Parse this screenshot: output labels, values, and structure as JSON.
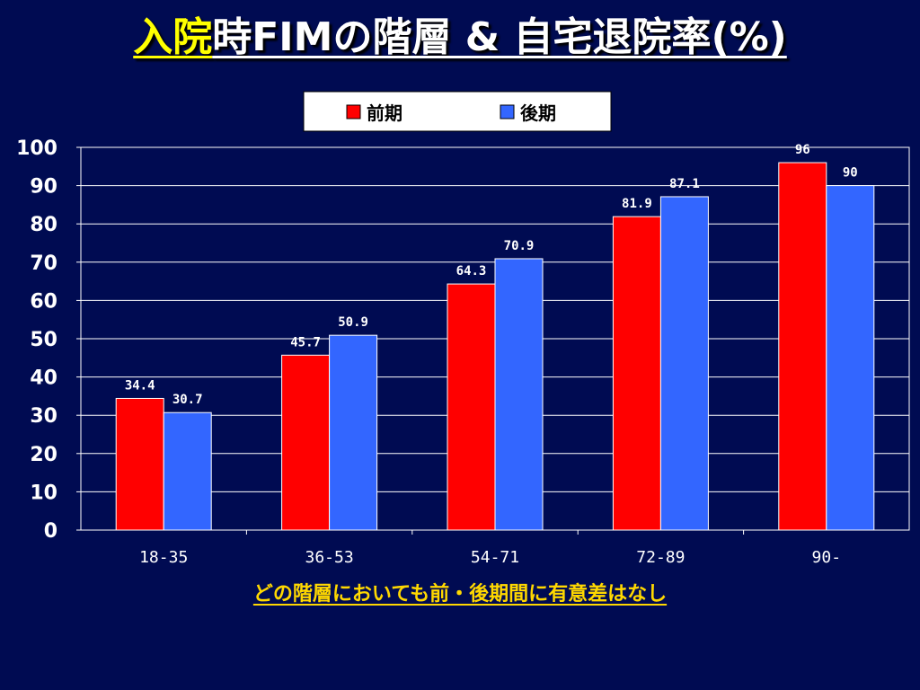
{
  "title": {
    "highlight": "入院",
    "main": "時FIMの階層 & 自宅退院率(%)"
  },
  "note": "どの階層においても前・後期間に有意差はなし",
  "chart_data": {
    "type": "bar",
    "title": "入院時FIMの階層 & 自宅退院率(%)",
    "categories": [
      "18-35",
      "36-53",
      "54-71",
      "72-89",
      "90-"
    ],
    "series": [
      {
        "name": "前期",
        "values": [
          34.4,
          45.7,
          64.3,
          81.9,
          96
        ],
        "labels": [
          "34.4",
          "45.7",
          "64.3",
          "81.9",
          "96"
        ],
        "color": "#ff0000"
      },
      {
        "name": "後期",
        "values": [
          30.7,
          50.9,
          70.9,
          87.1,
          90
        ],
        "labels": [
          "30.7",
          "50.9",
          "70.9",
          "87.1",
          "90"
        ],
        "color": "#3366ff"
      }
    ],
    "ylim": [
      0,
      100
    ],
    "yticks": [
      0,
      10,
      20,
      30,
      40,
      50,
      60,
      70,
      80,
      90,
      100
    ],
    "grid": true,
    "legend": "top-center",
    "xlabel": "",
    "ylabel": ""
  }
}
